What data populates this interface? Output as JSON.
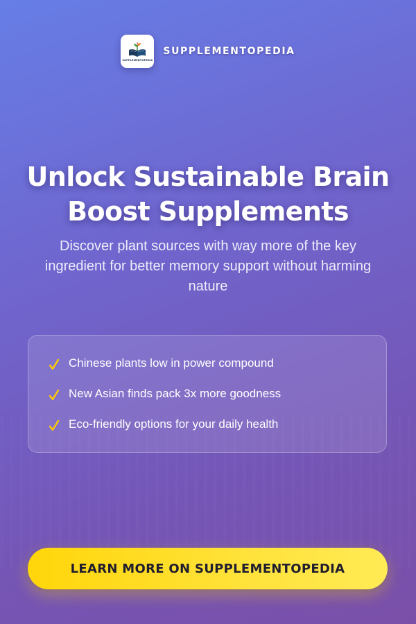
{
  "brand": {
    "logo_text": "SUPPLEMENTOPEDIA",
    "name": "SUPPLEMENTOPEDIA",
    "logo_icon": "open-book-with-plant-icon"
  },
  "hero": {
    "title_line1": "Unlock Sustainable Brain",
    "title_line2": "Boost Supplements",
    "subtitle": "Discover plant sources with way more of the key ingredient for better memory support without harming nature"
  },
  "features": {
    "icon": "checkmark-icon",
    "items": [
      {
        "text": "Chinese plants low in power compound"
      },
      {
        "text": "New Asian finds pack 3x more goodness"
      },
      {
        "text": "Eco-friendly options for your daily health"
      }
    ]
  },
  "cta": {
    "label": "LEARN MORE ON SUPPLEMENTOPEDIA"
  },
  "colors": {
    "background_start": "#667ee6",
    "background_end": "#7a4fa8",
    "accent_yellow": "#ffd60a",
    "check_yellow": "#ffcc00",
    "cta_text": "#1f1d2e"
  }
}
